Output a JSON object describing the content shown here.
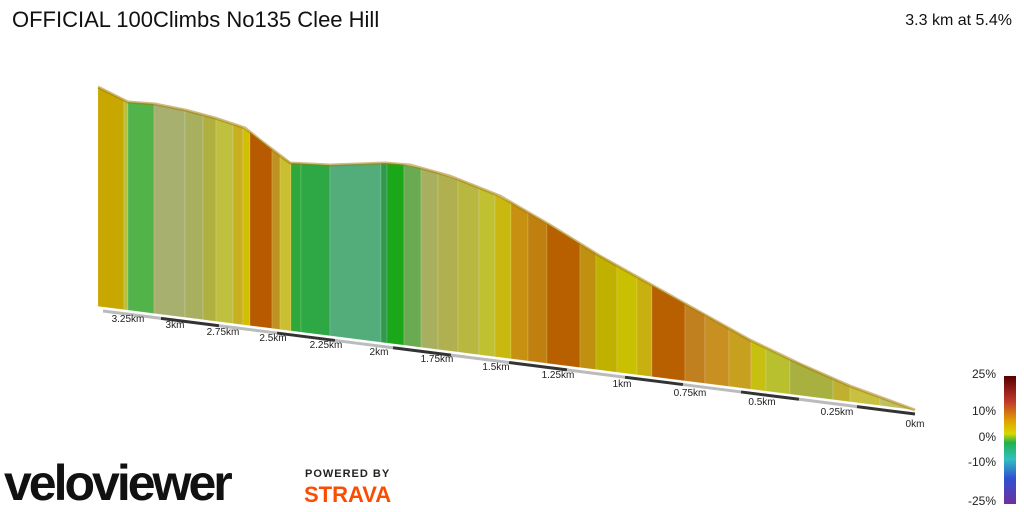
{
  "header": {
    "title": "OFFICIAL 100Climbs No135 Clee Hill",
    "summary": "3.3 km at 5.4%"
  },
  "distance_labels": [
    "3.25km",
    "3km",
    "2.75km",
    "2.5km",
    "2.25km",
    "2km",
    "1.75km",
    "1.5km",
    "1.25km",
    "1km",
    "0.75km",
    "0.5km",
    "0.25km",
    "0km"
  ],
  "gradient_scale": [
    "25%",
    "10%",
    "0%",
    "-10%",
    "-25%"
  ],
  "branding": {
    "logo": "veloviewer",
    "powered_by": "POWERED BY",
    "partner": "STRAVA"
  }
}
